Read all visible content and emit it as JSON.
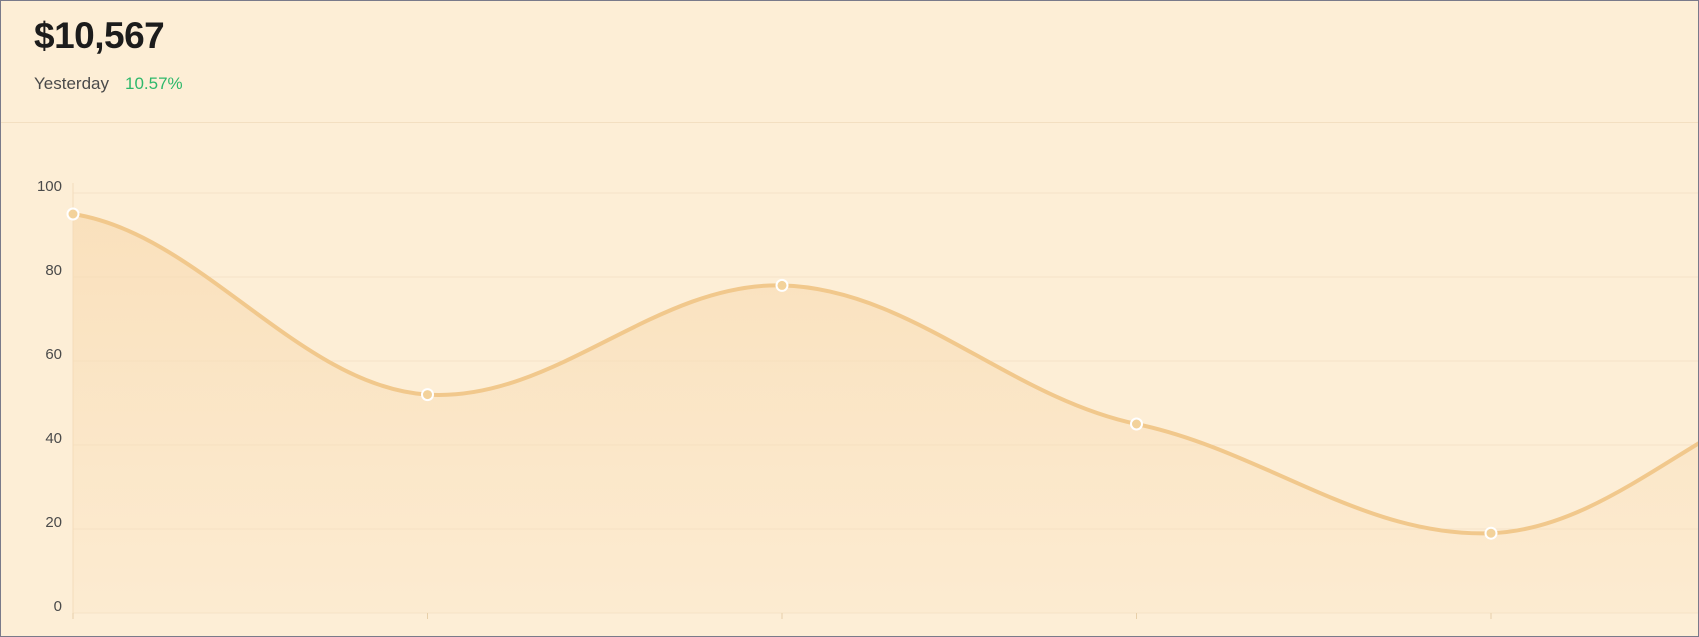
{
  "header": {
    "amount": "$10,567",
    "period_label": "Yesterday",
    "change": "10.57%"
  },
  "colors": {
    "background": "#fdeed6",
    "line": "#f1c88c",
    "area_top": "#f8dcb4",
    "positive": "#2eb86b",
    "marker_fill": "#f3d29a",
    "marker_stroke": "#ffffff"
  },
  "chart_data": {
    "type": "area",
    "x": [
      0,
      1,
      2,
      3,
      4
    ],
    "series": [
      {
        "values": [
          95,
          52,
          78,
          45,
          19
        ]
      }
    ],
    "trailing_value": 40,
    "yticks": [
      0,
      20,
      40,
      60,
      80,
      100
    ],
    "ylim": [
      0,
      100
    ],
    "grid": true,
    "legend": "none"
  }
}
